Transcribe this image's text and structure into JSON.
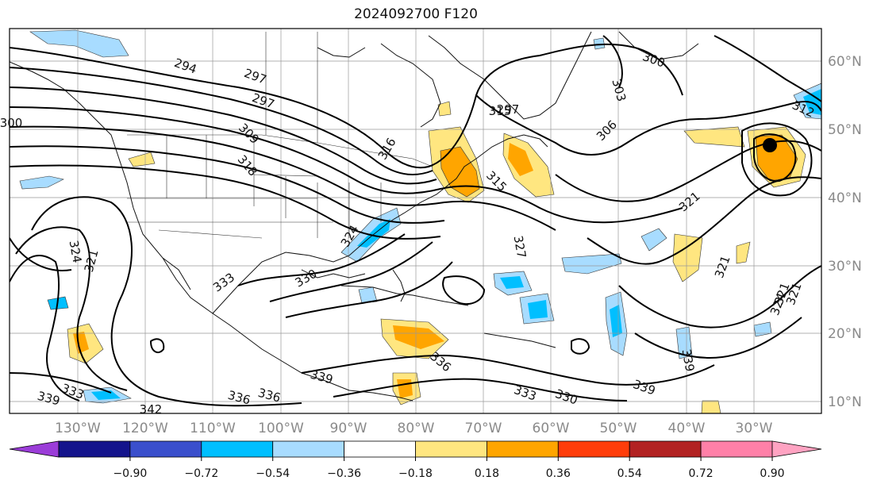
{
  "title": "2024092700 F120",
  "map": {
    "lon_ticks": [
      "130°W",
      "120°W",
      "110°W",
      "100°W",
      "90°W",
      "80°W",
      "70°W",
      "60°W",
      "50°W",
      "40°W",
      "30°W"
    ],
    "lat_ticks": [
      "60°N",
      "50°N",
      "40°N",
      "30°N",
      "20°N",
      "10°N"
    ],
    "contour_labels": [
      "294",
      "297",
      "297",
      "297",
      "300",
      "300",
      "303",
      "306",
      "309",
      "312",
      "315",
      "315",
      "316",
      "318",
      "321",
      "321",
      "321",
      "321",
      "321",
      "324",
      "324",
      "324",
      "327",
      "330",
      "330",
      "333",
      "333",
      "333",
      "336",
      "336",
      "336",
      "339",
      "339",
      "339",
      "339",
      "342"
    ]
  },
  "colorbar": {
    "ticks": [
      "−0.90",
      "−0.72",
      "−0.54",
      "−0.36",
      "−0.18",
      "0.18",
      "0.36",
      "0.54",
      "0.72",
      "0.90"
    ],
    "colors": {
      "low_extend": "#9b3dd8",
      "bins": [
        "#14148c",
        "#3a4fcc",
        "#00bfff",
        "#a8dcff",
        "#ffffff",
        "#ffe680",
        "#ffa500",
        "#ff3d0a",
        "#b22222",
        "#ff80a8"
      ],
      "high_extend": "#ffa3c2"
    }
  },
  "fill_colors": {
    "light_blue": "#a8dcff",
    "blue": "#00bfff",
    "light_yellow": "#ffe680",
    "orange": "#ffa500"
  },
  "marker": "black-dot"
}
